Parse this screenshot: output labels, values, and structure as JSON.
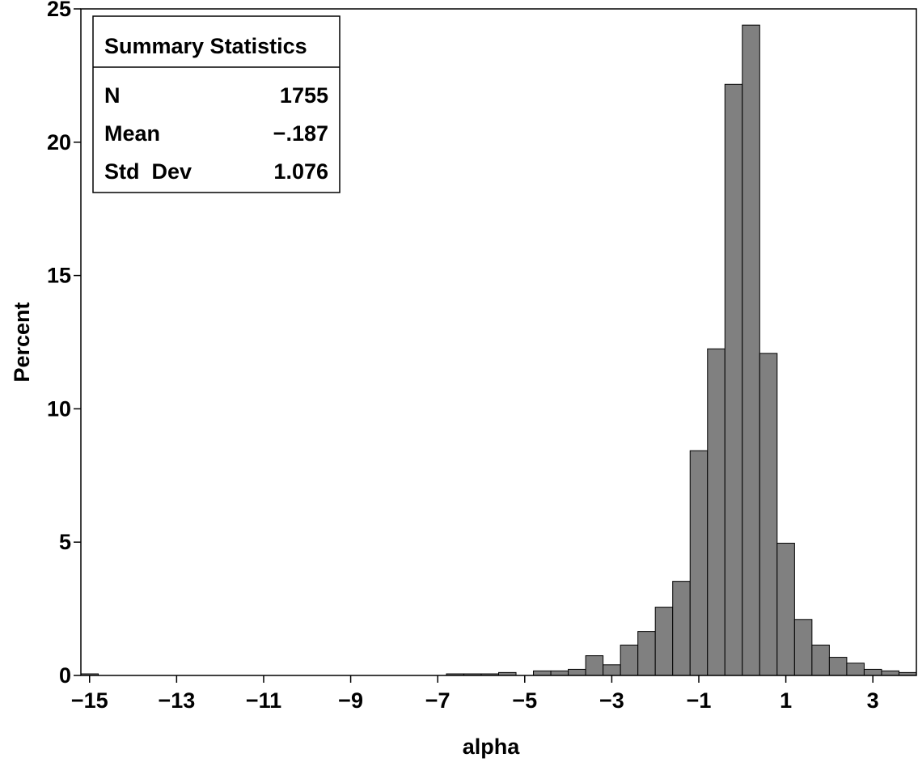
{
  "chart_data": {
    "type": "bar",
    "title": "",
    "xlabel": "alpha",
    "ylabel": "Percent",
    "xlim": [
      -15.2,
      4.0
    ],
    "ylim": [
      0,
      25
    ],
    "bin_width": 0.4,
    "x_ticks": [
      -15,
      -13,
      -11,
      -9,
      -7,
      -5,
      -3,
      -1,
      1,
      3
    ],
    "x_tick_labels": [
      "−15",
      "−13",
      "−11",
      "−9",
      "−7",
      "−5",
      "−3",
      "−1",
      "1",
      "3"
    ],
    "y_ticks": [
      0,
      5,
      10,
      15,
      20,
      25
    ],
    "y_tick_labels": [
      "0",
      "5",
      "10",
      "15",
      "20",
      "25"
    ],
    "bar_color": "#808080",
    "grid": false,
    "bins": [
      {
        "center": -15.0,
        "value": 0.06
      },
      {
        "center": -6.6,
        "value": 0.06
      },
      {
        "center": -6.2,
        "value": 0.06
      },
      {
        "center": -5.8,
        "value": 0.06
      },
      {
        "center": -5.4,
        "value": 0.11
      },
      {
        "center": -4.6,
        "value": 0.17
      },
      {
        "center": -4.2,
        "value": 0.17
      },
      {
        "center": -3.8,
        "value": 0.23
      },
      {
        "center": -3.4,
        "value": 0.74
      },
      {
        "center": -3.0,
        "value": 0.4
      },
      {
        "center": -2.6,
        "value": 1.14
      },
      {
        "center": -2.2,
        "value": 1.65
      },
      {
        "center": -1.8,
        "value": 2.56
      },
      {
        "center": -1.4,
        "value": 3.53
      },
      {
        "center": -1.0,
        "value": 8.43
      },
      {
        "center": -0.6,
        "value": 12.25
      },
      {
        "center": -0.2,
        "value": 22.17
      },
      {
        "center": 0.2,
        "value": 24.39
      },
      {
        "center": 0.6,
        "value": 12.08
      },
      {
        "center": 1.0,
        "value": 4.96
      },
      {
        "center": 1.4,
        "value": 2.1
      },
      {
        "center": 1.8,
        "value": 1.14
      },
      {
        "center": 2.2,
        "value": 0.68
      },
      {
        "center": 2.6,
        "value": 0.46
      },
      {
        "center": 3.0,
        "value": 0.23
      },
      {
        "center": 3.4,
        "value": 0.17
      },
      {
        "center": 3.8,
        "value": 0.11
      }
    ],
    "summary": {
      "title": "Summary Statistics",
      "legend_position": "top-left",
      "rows": [
        {
          "label": "N",
          "value": "1755"
        },
        {
          "label": "Mean",
          "value": "−.187"
        },
        {
          "label": "Std  Dev",
          "value": "1.076"
        }
      ]
    }
  }
}
